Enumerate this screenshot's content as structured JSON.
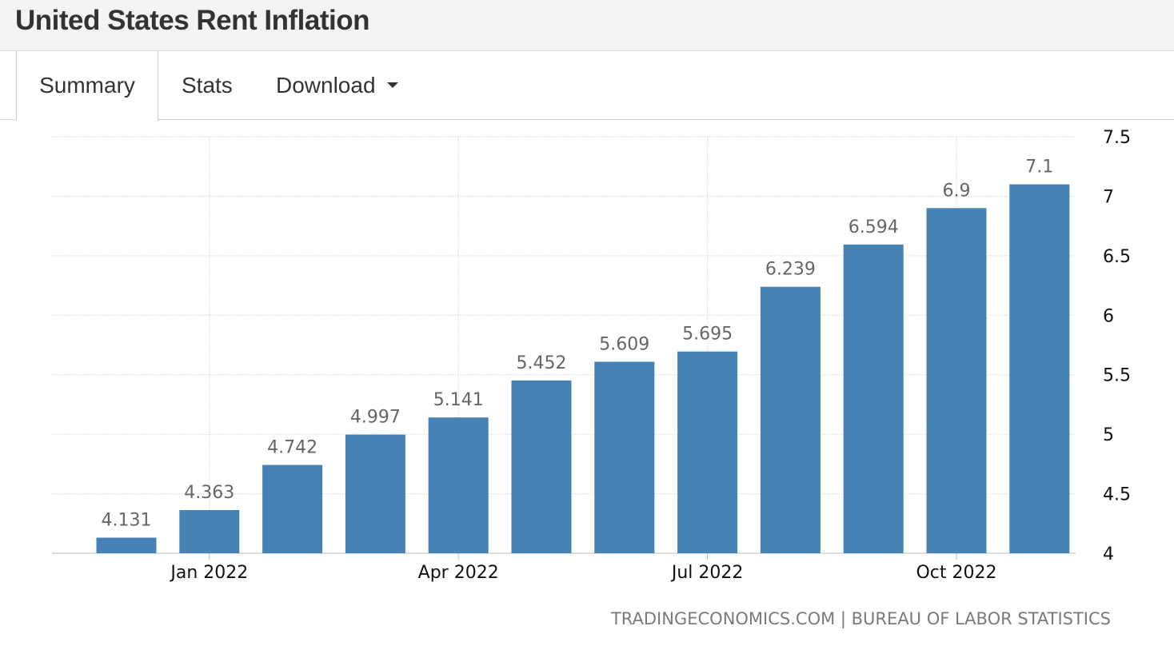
{
  "title": "United States Rent Inflation",
  "tabs": {
    "summary": "Summary",
    "stats": "Stats",
    "download": "Download"
  },
  "chart_data": {
    "type": "bar",
    "categories": [
      "Dec 2021",
      "Jan 2022",
      "Feb 2022",
      "Mar 2022",
      "Apr 2022",
      "May 2022",
      "Jun 2022",
      "Jul 2022",
      "Aug 2022",
      "Sep 2022",
      "Oct 2022",
      "Nov 2022"
    ],
    "values": [
      4.131,
      4.363,
      4.742,
      4.997,
      5.141,
      5.452,
      5.609,
      5.695,
      6.239,
      6.594,
      6.9,
      7.1
    ],
    "value_labels": [
      "4.131",
      "4.363",
      "4.742",
      "4.997",
      "5.141",
      "5.452",
      "5.609",
      "5.695",
      "6.239",
      "6.594",
      "6.9",
      "7.1"
    ],
    "x_ticks": [
      {
        "label": "Jan 2022",
        "index": 1
      },
      {
        "label": "Apr 2022",
        "index": 4
      },
      {
        "label": "Jul 2022",
        "index": 7
      },
      {
        "label": "Oct 2022",
        "index": 10
      }
    ],
    "y_ticks": [
      "4",
      "4.5",
      "5",
      "5.5",
      "6",
      "6.5",
      "7",
      "7.5"
    ],
    "ylim": [
      4,
      7.5
    ],
    "y_axis_side": "right",
    "grid": true,
    "title": "United States Rent Inflation",
    "xlabel": "",
    "ylabel": "",
    "bar_color": "#4682b4"
  },
  "footer": {
    "source": "TRADINGECONOMICS.COM | BUREAU OF LABOR STATISTICS"
  }
}
